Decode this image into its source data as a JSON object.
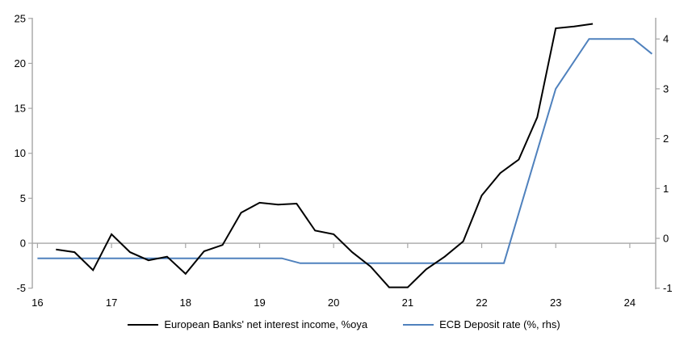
{
  "chart_data": {
    "type": "line",
    "title": "",
    "x_axis": {
      "ticks": [
        16,
        17,
        18,
        19,
        20,
        21,
        22,
        23,
        24
      ],
      "range": [
        15.93,
        24.35
      ]
    },
    "left_axis": {
      "ticks": [
        -5,
        0,
        5,
        10,
        15,
        20,
        25
      ],
      "range": [
        -5.03,
        25.07
      ]
    },
    "right_axis": {
      "ticks": [
        -1,
        0,
        1,
        2,
        3,
        4
      ],
      "range": [
        -1.005,
        4.425
      ]
    },
    "grid": "zero-line-only",
    "legend_position": "bottom",
    "axis_color": "#a6a6a6",
    "zero_line_color": "#a6a6a6",
    "series": [
      {
        "name": "European Banks' net interest income, %oya",
        "axis": "left",
        "color": "#000000",
        "x": [
          16.25,
          16.5,
          16.75,
          17.0,
          17.25,
          17.5,
          17.75,
          18.0,
          18.25,
          18.5,
          18.75,
          19.0,
          19.25,
          19.5,
          19.75,
          20.0,
          20.25,
          20.5,
          20.75,
          21.0,
          21.25,
          21.5,
          21.75,
          22.0,
          22.25,
          22.5,
          22.75,
          23.0,
          23.25,
          23.5
        ],
        "values": [
          -0.7,
          -1.0,
          -3.0,
          1.0,
          -1.0,
          -1.9,
          -1.5,
          -3.4,
          -0.9,
          -0.2,
          3.4,
          4.5,
          4.3,
          4.4,
          1.4,
          1.0,
          -1.0,
          -2.6,
          -4.9,
          -4.9,
          -2.9,
          -1.5,
          0.2,
          5.3,
          7.8,
          9.3,
          14.0,
          23.9,
          24.1,
          24.4
        ]
      },
      {
        "name": "ECB Deposit rate (%, rhs)",
        "axis": "right",
        "color": "#4f81bd",
        "x": [
          16.0,
          19.3,
          19.55,
          22.3,
          23.0,
          23.45,
          24.05,
          24.3
        ],
        "values": [
          -0.4,
          -0.4,
          -0.5,
          -0.5,
          3.0,
          4.0,
          4.0,
          3.7
        ]
      }
    ]
  }
}
